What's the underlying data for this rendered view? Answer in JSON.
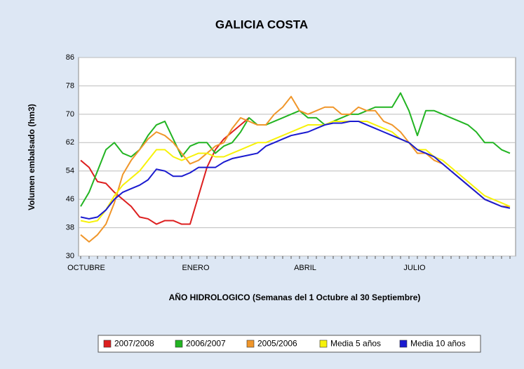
{
  "chart_data": {
    "type": "line",
    "title": "GALICIA COSTA",
    "y_label": "Volumen  embalsado  (hm3)",
    "x_label": "AÑO HIDROLOGICO  (Semanas del 1 Octubre al 30 Septiembre)",
    "categories": [
      "OCTUBRE",
      null,
      null,
      null,
      null,
      null,
      null,
      null,
      null,
      null,
      null,
      null,
      null,
      "ENERO",
      null,
      null,
      null,
      null,
      null,
      null,
      null,
      null,
      null,
      null,
      null,
      null,
      "ABRIL",
      null,
      null,
      null,
      null,
      null,
      null,
      null,
      null,
      null,
      null,
      null,
      null,
      "JULIO",
      null,
      null,
      null,
      null,
      null,
      null,
      null,
      null,
      null,
      null,
      null,
      null
    ],
    "ylim": [
      30,
      86
    ],
    "yticks": [
      30,
      38,
      46,
      54,
      62,
      70,
      78,
      86
    ],
    "grid": true,
    "legend": "bottom",
    "series": [
      {
        "name": "2007/2008",
        "color": "#dd1f1f",
        "values": [
          57,
          55,
          51,
          50.5,
          48,
          46,
          44,
          41,
          40.5,
          39,
          40,
          40,
          39,
          39,
          47,
          55,
          60,
          63,
          65,
          67,
          69,
          null,
          null,
          null,
          null,
          null,
          null,
          null,
          null,
          null,
          null,
          null,
          null,
          null,
          null,
          null,
          null,
          null,
          null,
          null,
          null,
          null,
          null,
          null,
          null,
          null,
          null,
          null,
          null,
          null,
          null,
          null
        ]
      },
      {
        "name": "2006/2007",
        "color": "#22b422",
        "values": [
          44,
          48,
          54,
          60,
          62,
          59,
          58,
          60,
          64,
          67,
          68,
          63,
          58,
          61,
          62,
          62,
          59,
          61,
          62,
          65,
          69,
          67,
          67,
          68,
          69,
          70,
          71,
          69,
          69,
          67,
          68,
          69,
          70,
          70,
          71,
          72,
          72,
          72,
          76,
          71,
          64,
          71,
          71,
          70,
          69,
          68,
          67,
          65,
          62,
          62,
          60,
          59
        ]
      },
      {
        "name": "2005/2006",
        "color": "#f0962a",
        "values": [
          36,
          34,
          36,
          39,
          45,
          53,
          57,
          60,
          63,
          65,
          64,
          62,
          59,
          56,
          57,
          59,
          61,
          62,
          66,
          69,
          68,
          67,
          67,
          70,
          72,
          75,
          71,
          70,
          71,
          72,
          72,
          70,
          70,
          72,
          71,
          71,
          68,
          67,
          65,
          62,
          59,
          59,
          57,
          56,
          54,
          52,
          50,
          48,
          46,
          45,
          44,
          44
        ]
      },
      {
        "name": "Media 5 años",
        "color": "#f7f20a",
        "values": [
          40,
          39.5,
          40,
          43,
          47,
          50,
          52,
          54,
          57,
          60,
          60,
          58,
          57,
          58,
          59,
          59,
          58,
          58,
          59,
          60,
          61,
          62,
          62,
          63,
          64,
          65,
          66,
          67,
          67,
          67,
          68,
          68,
          68,
          68,
          68,
          67,
          66,
          65,
          63,
          62,
          60,
          60,
          58,
          57,
          55,
          53,
          51,
          49,
          47,
          46,
          45,
          44
        ]
      },
      {
        "name": "Media 10 años",
        "color": "#1a1ad0",
        "values": [
          41,
          40.5,
          41,
          43,
          46,
          48,
          49,
          50,
          51.5,
          54.5,
          54,
          52.5,
          52.5,
          53.5,
          55,
          55,
          55,
          56.5,
          57.5,
          58,
          58.5,
          59,
          61,
          62,
          63,
          64,
          64.5,
          65,
          66,
          67,
          67.5,
          67.5,
          68,
          68,
          67,
          66,
          65,
          64,
          63,
          62,
          60,
          59,
          58,
          56,
          54,
          52,
          50,
          48,
          46,
          45,
          44,
          43.5
        ]
      }
    ]
  }
}
